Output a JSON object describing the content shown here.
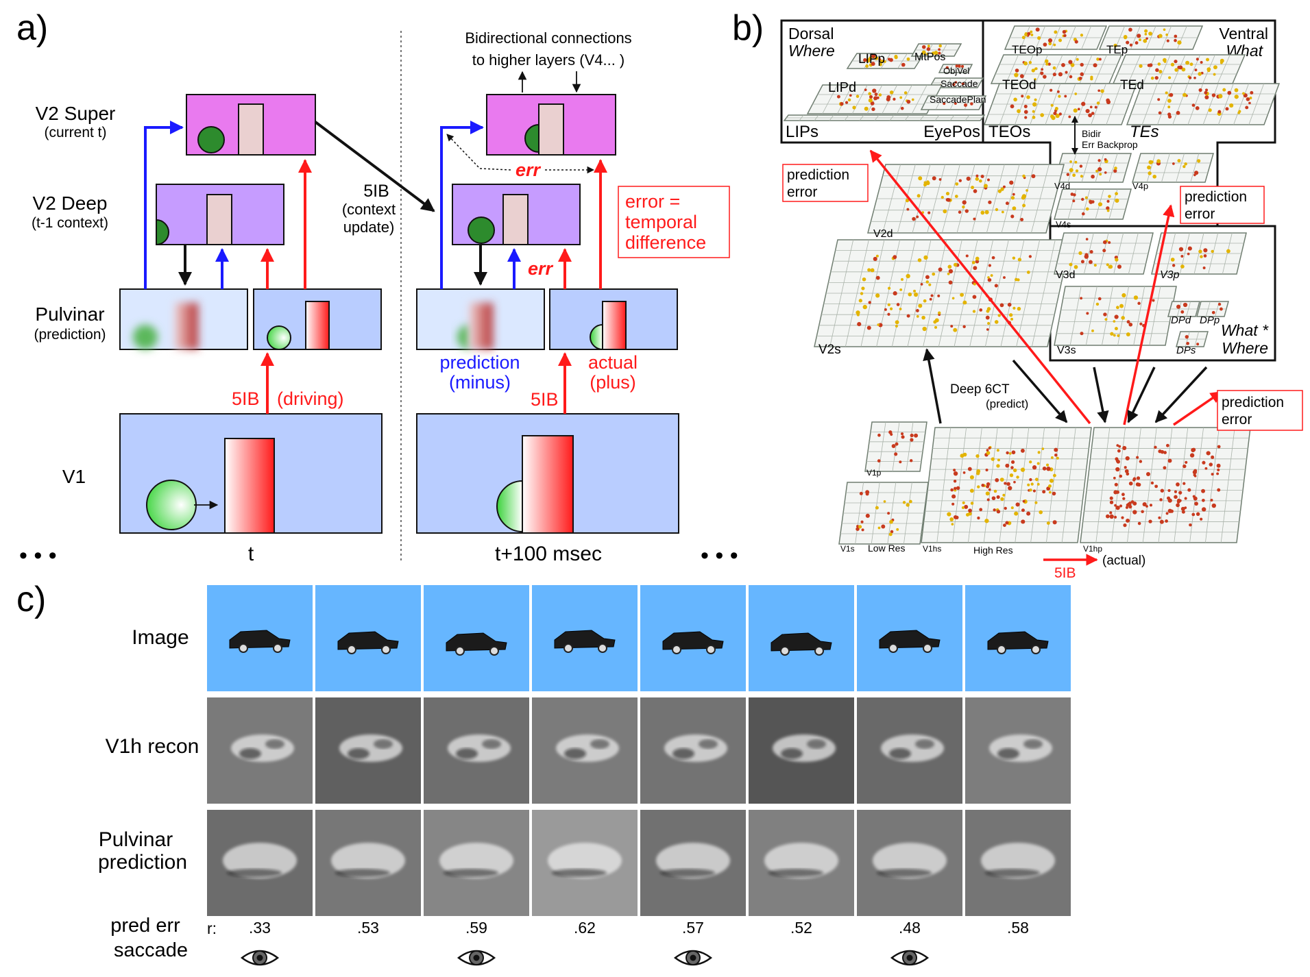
{
  "panel_a": {
    "label": "a)",
    "rows": {
      "v2super": {
        "title": "V2 Super",
        "sub": "(current t)"
      },
      "v2deep": {
        "title": "V2 Deep",
        "sub": "(t-1 context)"
      },
      "pulvinar": {
        "title": "Pulvinar",
        "sub": "(prediction)"
      },
      "v1": {
        "title": "V1"
      }
    },
    "context_update": [
      "5IB",
      "(context",
      "update)"
    ],
    "bidir": [
      "Bidirectional connections",
      "to higher layers (V4... )"
    ],
    "err": "err",
    "error_box": [
      "error =",
      "temporal",
      "difference"
    ],
    "driving_5ib": "5IB",
    "driving": "(driving)",
    "prediction": [
      "prediction",
      "(minus)"
    ],
    "actual": [
      "actual",
      "(plus)"
    ],
    "right_5ib": "5IB",
    "time_t": "t",
    "time_t100": "t+100 msec",
    "dots": "•  •  •"
  },
  "panel_b": {
    "label": "b)",
    "dorsal": {
      "title": "Dorsal",
      "sub": "Where"
    },
    "ventral": {
      "title": "Ventral",
      "sub": "What"
    },
    "what_where": [
      "What *",
      "Where"
    ],
    "layers": {
      "lipp": "LIPp",
      "mtpos": "MtPos",
      "objvel": "ObjVel",
      "saccade": "Saccade",
      "lipd": "LIPd",
      "saccadeplan": "SaccadePlan",
      "lips": "LIPs",
      "eyepos": "EyePos",
      "teop": "TEOp",
      "tep": "TEp",
      "teod": "TEOd",
      "ted": "TEd",
      "teos": "TEOs",
      "tes": "TEs",
      "v4d": "V4d",
      "v4p": "V4p",
      "v4s": "V4s",
      "v2d": "V2d",
      "v2s": "V2s",
      "v3d": "V3d",
      "v3p": "V3p",
      "v3s": "V3s",
      "dpd": "DPd",
      "dpp": "DPp",
      "dps": "DPs",
      "v1p": "V1p",
      "v1s": "V1s",
      "v1hs": "V1hs",
      "v1hp": "V1hp",
      "low_res": "Low Res",
      "high_res": "High Res"
    },
    "bidir": [
      "Bidir",
      "Err Backprop"
    ],
    "pred_error": [
      "prediction",
      "error"
    ],
    "deep6ct": [
      "Deep 6CT",
      "(predict)"
    ],
    "ib5": "5IB",
    "actual": "(actual)"
  },
  "panel_c": {
    "label": "c)",
    "row_labels": {
      "image": "Image",
      "recon": "V1h recon",
      "pred": [
        "Pulvinar",
        "prediction"
      ],
      "err": [
        "pred err",
        "saccade"
      ]
    },
    "r_label": "r:",
    "r_values": [
      ".33",
      ".53",
      ".59",
      ".62",
      ".57",
      ".52",
      ".48",
      ".58"
    ],
    "saccade": [
      true,
      false,
      true,
      false,
      true,
      false,
      true,
      false
    ],
    "sky_color": "#66b6ff",
    "recon_grays": [
      "#7a7a7a",
      "#606060",
      "#6e6e6e",
      "#7b7b7b",
      "#737373",
      "#555555",
      "#696969",
      "#7d7d7d"
    ],
    "pred_grays": [
      "#6c6c6c",
      "#777777",
      "#868686",
      "#9a9a9a",
      "#717171",
      "#808080",
      "#787878",
      "#757575"
    ]
  }
}
